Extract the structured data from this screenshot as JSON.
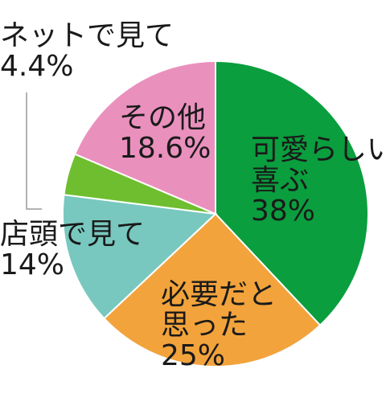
{
  "chart_data": {
    "type": "pie",
    "slices": [
      {
        "label": "可愛らしい喜ぶ",
        "label_lines": [
          "可愛らしい",
          "喜ぶ"
        ],
        "value_text": "38%",
        "value": 38,
        "color": "#0a9e3e"
      },
      {
        "label": "必要だと思った",
        "label_lines": [
          "必要だと",
          "思った"
        ],
        "value_text": "25%",
        "value": 25,
        "color": "#f2a33c"
      },
      {
        "label": "店頭で見て",
        "label_lines": [
          "店頭で見て"
        ],
        "value_text": "14%",
        "value": 14,
        "color": "#78c8bf"
      },
      {
        "label": "ネットで見て",
        "label_lines": [
          "ネットで見て"
        ],
        "value_text": "4.4%",
        "value": 4.4,
        "color": "#6ebe2f"
      },
      {
        "label": "その他",
        "label_lines": [
          "その他"
        ],
        "value_text": "18.6%",
        "value": 18.6,
        "color": "#ea90bd"
      }
    ],
    "start": "12 o'clock",
    "direction": "clockwise",
    "legend": "none"
  }
}
